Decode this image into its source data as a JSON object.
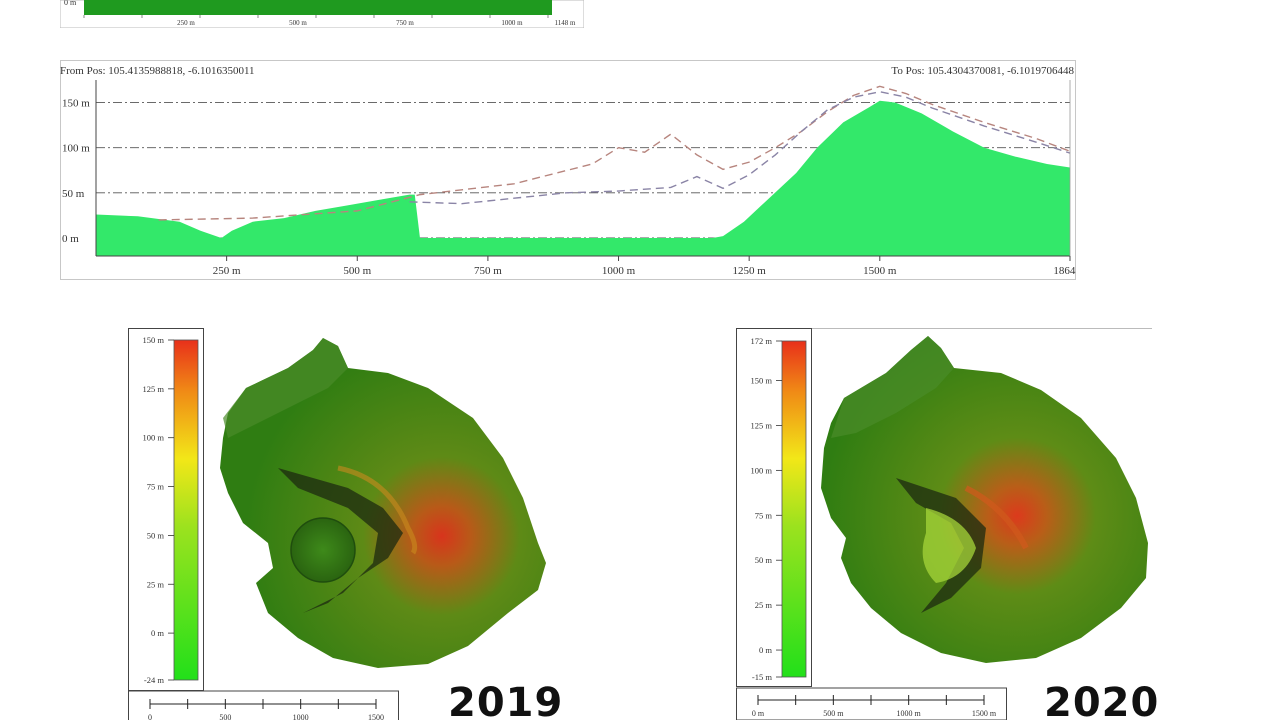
{
  "chart_data": [
    {
      "type": "area",
      "x_ticks": [
        "250 m",
        "500 m",
        "750 m",
        "1000 m",
        "1148 m"
      ],
      "y_ticks": [
        "0 m"
      ],
      "color": "#1f9a1f"
    },
    {
      "type": "area",
      "from_pos_label": "From Pos: 105.4135988818, -6.1016350011",
      "to_pos_label": "To Pos: 105.4304370081, -6.1019706448",
      "x_ticks": [
        "250 m",
        "500 m",
        "750 m",
        "1000 m",
        "1250 m",
        "1500 m",
        "1864 m"
      ],
      "y_ticks": [
        "150 m",
        "100 m",
        "50 m",
        "0 m"
      ],
      "xlim": [
        0,
        1864
      ],
      "ylim": [
        -20,
        175
      ],
      "fill_color": "#33e86a",
      "series": [
        {
          "x": [
            0,
            80,
            160,
            200,
            240,
            260,
            300,
            360,
            420,
            480,
            540,
            600,
            610,
            620,
            700,
            800,
            900,
            1000,
            1100,
            1180,
            1200,
            1240,
            1290,
            1340,
            1380,
            1430,
            1480,
            1500,
            1530,
            1580,
            1640,
            1700,
            1760,
            1820,
            1864
          ],
          "y": [
            26,
            24,
            18,
            8,
            0,
            8,
            18,
            22,
            30,
            36,
            42,
            48,
            48,
            0,
            0,
            0,
            0,
            0,
            0,
            0,
            2,
            18,
            45,
            72,
            100,
            128,
            145,
            152,
            150,
            138,
            118,
            100,
            90,
            82,
            78
          ]
        },
        {
          "x": [
            120,
            300,
            500,
            620,
            800,
            950,
            1000,
            1050,
            1100,
            1150,
            1200,
            1250,
            1300,
            1350,
            1400,
            1450,
            1500,
            1550,
            1600,
            1700,
            1800,
            1864
          ],
          "y": [
            20,
            22,
            30,
            48,
            60,
            82,
            100,
            95,
            115,
            92,
            76,
            84,
            100,
            118,
            140,
            158,
            168,
            160,
            148,
            128,
            110,
            96
          ],
          "dash": "8,5",
          "color": "#b7857e"
        },
        {
          "x": [
            600,
            700,
            800,
            900,
            1000,
            1100,
            1150,
            1200,
            1250,
            1300,
            1350,
            1400,
            1450,
            1500,
            1550,
            1600,
            1700,
            1800,
            1864
          ],
          "y": [
            40,
            38,
            44,
            50,
            52,
            56,
            68,
            55,
            70,
            92,
            118,
            142,
            156,
            162,
            156,
            144,
            124,
            106,
            94
          ],
          "dash": "8,5",
          "color": "#8a84a6"
        }
      ]
    }
  ],
  "maps": [
    {
      "year": "2019",
      "colorbar_ticks": [
        "150 m",
        "125 m",
        "100 m",
        "75 m",
        "50 m",
        "25 m",
        "0 m",
        "-24 m"
      ],
      "colorbar_min": -24,
      "colorbar_max": 150
    },
    {
      "year": "2020",
      "colorbar_ticks": [
        "172 m",
        "150 m",
        "125 m",
        "100 m",
        "75 m",
        "50 m",
        "25 m",
        "0 m",
        "-15 m"
      ],
      "colorbar_min": -15,
      "colorbar_max": 172
    }
  ],
  "scale_bars": [
    {
      "labels": [
        "0",
        "500",
        "1000",
        "1500"
      ]
    },
    {
      "labels": [
        "0 m",
        "500 m",
        "1000 m",
        "1500 m"
      ]
    }
  ]
}
